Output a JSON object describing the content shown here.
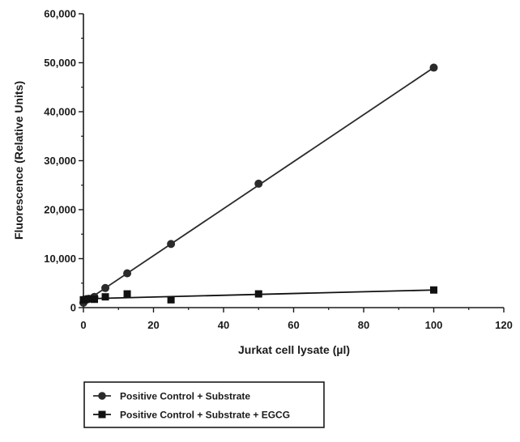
{
  "chart_data": {
    "type": "scatter",
    "xlabel": "Jurkat cell lysate (µl)",
    "ylabel": "Fluorescence (Relative Units)",
    "xlim": [
      0,
      120
    ],
    "ylim": [
      0,
      60000
    ],
    "x_ticks": [
      0,
      20,
      40,
      60,
      80,
      100,
      120
    ],
    "y_ticks": [
      0,
      10000,
      20000,
      30000,
      40000,
      50000,
      60000
    ],
    "x_tick_labels": [
      "0",
      "20",
      "40",
      "60",
      "80",
      "100",
      "120"
    ],
    "y_tick_labels": [
      "0",
      "10,000",
      "20,000",
      "30,000",
      "40,000",
      "50,000",
      "60,000"
    ],
    "grid": false,
    "legend_position": "bottom-left",
    "series": [
      {
        "name": "Positive Control + Substrate",
        "marker": "circle",
        "color": "#2b2b2b",
        "fit_line": [
          [
            0,
            1000
          ],
          [
            100,
            49000
          ]
        ],
        "points": [
          [
            0,
            1000
          ],
          [
            0.78,
            1600
          ],
          [
            1.56,
            1800
          ],
          [
            3.125,
            2200
          ],
          [
            6.25,
            4000
          ],
          [
            12.5,
            7000
          ],
          [
            25,
            13000
          ],
          [
            50,
            25300
          ],
          [
            100,
            49000
          ]
        ]
      },
      {
        "name": "Positive Control + Substrate + EGCG",
        "marker": "square",
        "color": "#111111",
        "fit_line": [
          [
            0,
            1800
          ],
          [
            100,
            3600
          ]
        ],
        "points": [
          [
            0,
            1600
          ],
          [
            0.78,
            1700
          ],
          [
            1.56,
            1800
          ],
          [
            3.125,
            1700
          ],
          [
            6.25,
            2200
          ],
          [
            12.5,
            2800
          ],
          [
            25,
            1600
          ],
          [
            50,
            2800
          ],
          [
            100,
            3600
          ]
        ]
      }
    ]
  }
}
